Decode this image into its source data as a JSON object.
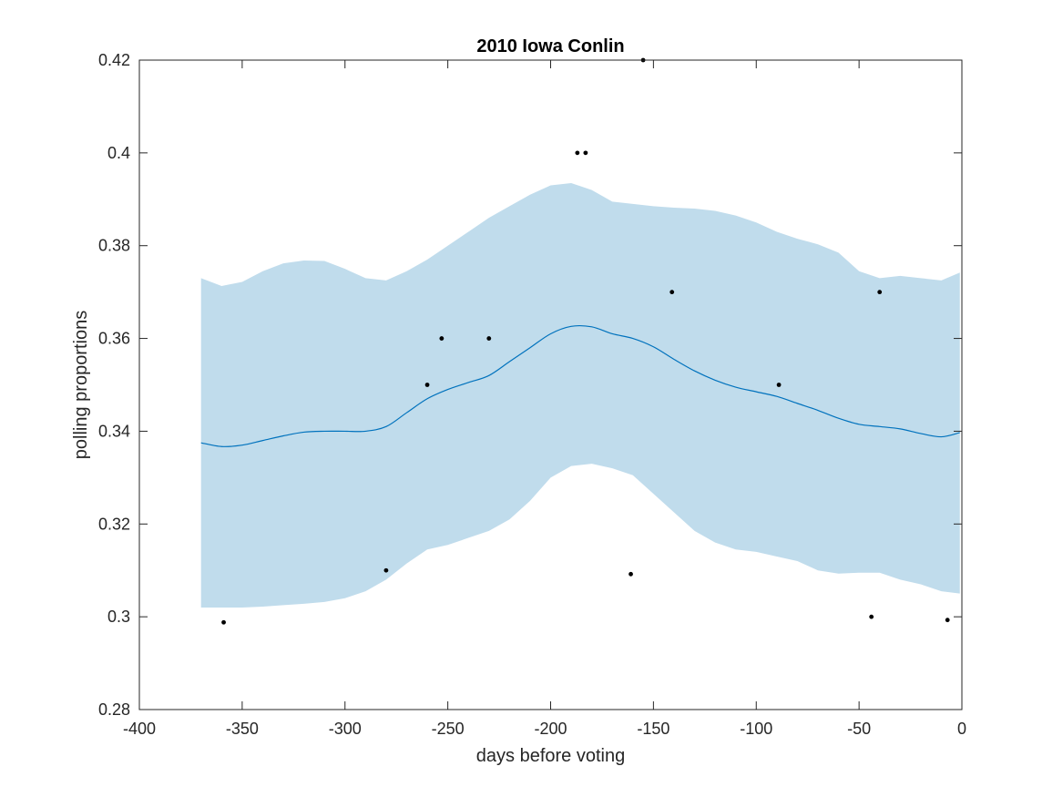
{
  "chart_data": {
    "type": "line",
    "title": "2010 Iowa Conlin",
    "xlabel": "days before voting",
    "ylabel": "polling proportions",
    "xlim": [
      -400,
      0
    ],
    "ylim": [
      0.28,
      0.42
    ],
    "x_ticks": [
      -400,
      -350,
      -300,
      -250,
      -200,
      -150,
      -100,
      -50,
      0
    ],
    "x_tick_labels": [
      "-400",
      "-350",
      "-300",
      "-250",
      "-200",
      "-150",
      "-100",
      "-50",
      "0"
    ],
    "y_ticks": [
      0.28,
      0.3,
      0.32,
      0.34,
      0.36,
      0.38,
      0.4,
      0.42
    ],
    "y_tick_labels": [
      "0.28",
      "0.3",
      "0.32",
      "0.34",
      "0.36",
      "0.38",
      "0.4",
      "0.42"
    ],
    "grid": false,
    "colors": {
      "band": "#c0dcec",
      "mean_line": "#0072bd",
      "points": "#000000",
      "axes": "#262626"
    },
    "band": {
      "x": [
        -370,
        -360,
        -350,
        -340,
        -330,
        -320,
        -310,
        -300,
        -290,
        -280,
        -270,
        -260,
        -250,
        -240,
        -230,
        -220,
        -210,
        -200,
        -190,
        -180,
        -170,
        -160,
        -150,
        -140,
        -130,
        -120,
        -110,
        -100,
        -90,
        -80,
        -70,
        -60,
        -50,
        -40,
        -30,
        -20,
        -10,
        -1
      ],
      "upper": [
        0.373,
        0.3713,
        0.3722,
        0.3745,
        0.3762,
        0.3768,
        0.3767,
        0.375,
        0.373,
        0.3725,
        0.3745,
        0.377,
        0.38,
        0.383,
        0.386,
        0.3885,
        0.391,
        0.393,
        0.3935,
        0.392,
        0.3895,
        0.389,
        0.3885,
        0.3882,
        0.388,
        0.3875,
        0.3865,
        0.385,
        0.383,
        0.3815,
        0.3803,
        0.3785,
        0.3745,
        0.373,
        0.3735,
        0.373,
        0.3725,
        0.3742
      ],
      "lower": [
        0.302,
        0.302,
        0.302,
        0.3022,
        0.3025,
        0.3028,
        0.3032,
        0.304,
        0.3055,
        0.308,
        0.3115,
        0.3145,
        0.3155,
        0.317,
        0.3185,
        0.321,
        0.325,
        0.33,
        0.3325,
        0.333,
        0.332,
        0.3305,
        0.3265,
        0.3225,
        0.3185,
        0.316,
        0.3145,
        0.314,
        0.313,
        0.312,
        0.31,
        0.3093,
        0.3095,
        0.3095,
        0.308,
        0.307,
        0.3055,
        0.305
      ]
    },
    "series": [
      {
        "x": [
          -370,
          -360,
          -350,
          -340,
          -330,
          -320,
          -310,
          -300,
          -290,
          -280,
          -270,
          -260,
          -250,
          -240,
          -230,
          -220,
          -210,
          -200,
          -190,
          -180,
          -170,
          -160,
          -150,
          -140,
          -130,
          -120,
          -110,
          -100,
          -90,
          -80,
          -70,
          -60,
          -50,
          -40,
          -30,
          -20,
          -10,
          -1
        ],
        "values": [
          0.3375,
          0.3367,
          0.337,
          0.338,
          0.339,
          0.3398,
          0.34,
          0.34,
          0.34,
          0.341,
          0.344,
          0.347,
          0.349,
          0.3505,
          0.352,
          0.355,
          0.358,
          0.361,
          0.3626,
          0.3625,
          0.361,
          0.36,
          0.3582,
          0.3555,
          0.353,
          0.351,
          0.3495,
          0.3485,
          0.3475,
          0.346,
          0.3445,
          0.3428,
          0.3415,
          0.341,
          0.3405,
          0.3395,
          0.3388,
          0.3397
        ]
      }
    ],
    "points": [
      {
        "x": -359,
        "y": 0.2988
      },
      {
        "x": -280,
        "y": 0.31
      },
      {
        "x": -260,
        "y": 0.35
      },
      {
        "x": -253,
        "y": 0.36
      },
      {
        "x": -230,
        "y": 0.36
      },
      {
        "x": -187,
        "y": 0.4
      },
      {
        "x": -183,
        "y": 0.4
      },
      {
        "x": -161,
        "y": 0.3092
      },
      {
        "x": -155,
        "y": 0.42
      },
      {
        "x": -141,
        "y": 0.37
      },
      {
        "x": -89,
        "y": 0.35
      },
      {
        "x": -44,
        "y": 0.3
      },
      {
        "x": -40,
        "y": 0.37
      },
      {
        "x": -7,
        "y": 0.2993
      }
    ]
  }
}
